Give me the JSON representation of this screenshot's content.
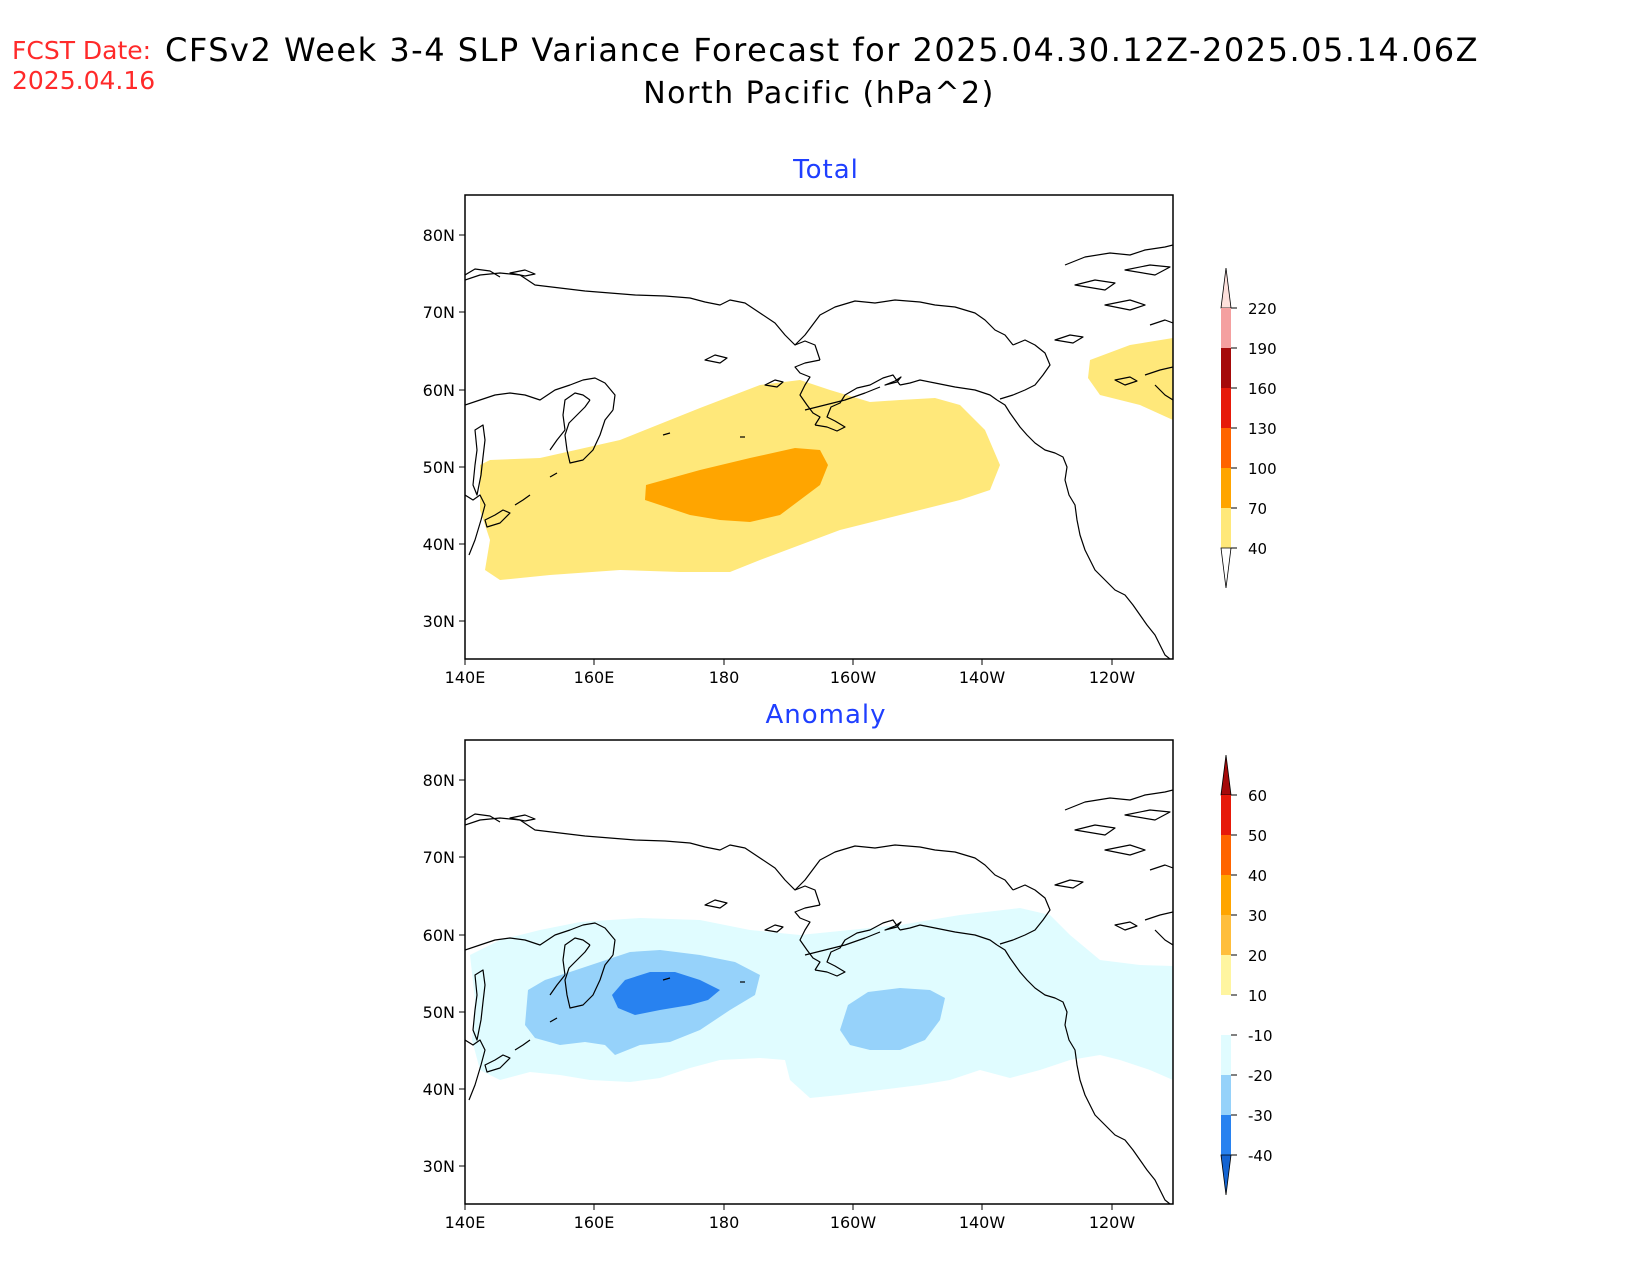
{
  "header": {
    "fcst_label": "FCST Date:",
    "fcst_date": "2025.04.16",
    "title": "CFSv2 Week 3-4 SLP Variance Forecast for 2025.04.30.12Z-2025.05.14.06Z",
    "subtitle": "North Pacific (hPa^2)"
  },
  "map": {
    "lon_range": [
      "140E",
      "110W"
    ],
    "lat_range": [
      "25N",
      "85N"
    ],
    "lat_ticks": [
      "80N",
      "70N",
      "60N",
      "50N",
      "40N",
      "30N"
    ],
    "lon_ticks": [
      "140E",
      "160E",
      "180",
      "160W",
      "140W",
      "120W"
    ]
  },
  "panels": [
    {
      "name": "total",
      "title": "Total",
      "colorbar": {
        "levels": [
          "40",
          "70",
          "100",
          "130",
          "160",
          "190",
          "220"
        ],
        "colors": [
          "#ffe87a",
          "#ffa500",
          "#ff6400",
          "#e61a0a",
          "#a50a0a",
          "#f4a0a0",
          "#fde0dc"
        ]
      },
      "features": [
        {
          "label": "40-70 hPa^2 band across North Pacific storm track",
          "color": "#ffe87a"
        },
        {
          "label": "70-100 hPa^2 maximum near 180, 47N",
          "color": "#ffa500"
        }
      ]
    },
    {
      "name": "anomaly",
      "title": "Anomaly",
      "colorbar": {
        "levels": [
          "60",
          "50",
          "40",
          "30",
          "20",
          "10",
          "-10",
          "-20",
          "-30",
          "-40"
        ],
        "colors": [
          "#a50a0a",
          "#e61a0a",
          "#ff6400",
          "#ffa500",
          "#ffbe3c",
          "#fff5a0",
          "#ffffff",
          "#e0fcff",
          "#96d2fa",
          "#2882f0",
          "#1464d2"
        ]
      },
      "features": [
        {
          "label": "-10 to -20 negative anomaly across North Pacific",
          "color": "#e0fcff"
        },
        {
          "label": "-20 to -30 centers",
          "color": "#96d2fa"
        },
        {
          "label": "-30 to -40 minimum near 168E, 53N",
          "color": "#2882f0"
        }
      ]
    }
  ]
}
